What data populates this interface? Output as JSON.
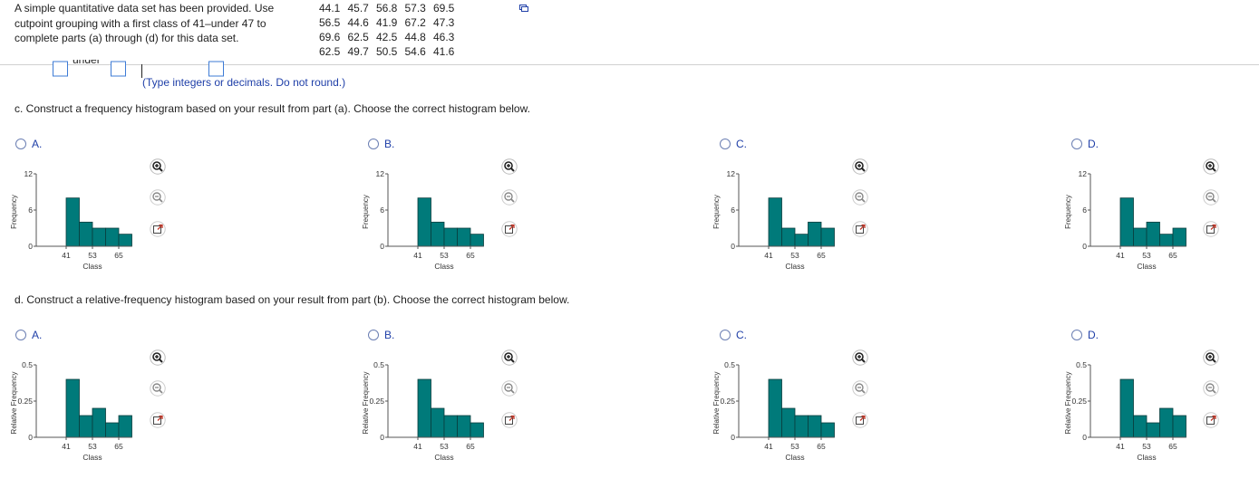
{
  "problem": {
    "lines": [
      "A simple quantitative data set has been provided. Use",
      "cutpoint grouping with a first class of 41–under 47 to",
      "complete parts (a) through (d) for this data set."
    ],
    "data_rows": [
      [
        "44.1",
        "45.7",
        "56.8",
        "57.3",
        "69.5"
      ],
      [
        "56.5",
        "44.6",
        "41.9",
        "67.2",
        "47.3"
      ],
      [
        "69.6",
        "62.5",
        "42.5",
        "44.8",
        "46.3"
      ],
      [
        "62.5",
        "49.7",
        "50.5",
        "54.6",
        "41.6"
      ]
    ]
  },
  "part_b_fragment": {
    "under_text": "under"
  },
  "hint": "(Type integers or decimals. Do not round.)",
  "part_c": {
    "question": "c. Construct a frequency histogram based on your result from part (a). Choose the correct histogram below.",
    "options": [
      "A.",
      "B.",
      "C.",
      "D."
    ]
  },
  "part_d": {
    "question": "d. Construct a relative-frequency histogram based on your result from part (b). Choose the correct histogram below.",
    "options": [
      "A.",
      "B.",
      "C.",
      "D."
    ]
  },
  "colors": {
    "bar": "#007a7a",
    "link": "#1f3fa8",
    "radio": "#6b7fb3"
  },
  "icons": [
    "zoom-in-icon",
    "zoom-out-icon",
    "open-new-window-icon",
    "copy-icon"
  ],
  "chart_data": [
    {
      "type": "bar",
      "panel": "c-A",
      "xlabel": "Class",
      "ylabel": "Frequency",
      "ylim": [
        0,
        12
      ],
      "yticks": [
        "0",
        "6",
        "12"
      ],
      "xticks": [
        "41",
        "53",
        "65"
      ],
      "values": [
        8,
        4,
        3,
        3,
        2
      ]
    },
    {
      "type": "bar",
      "panel": "c-B",
      "xlabel": "Class",
      "ylabel": "Frequency",
      "ylim": [
        0,
        12
      ],
      "yticks": [
        "0",
        "6",
        "12"
      ],
      "xticks": [
        "41",
        "53",
        "65"
      ],
      "values": [
        8,
        4,
        3,
        3,
        2
      ]
    },
    {
      "type": "bar",
      "panel": "c-C",
      "xlabel": "Class",
      "ylabel": "Frequency",
      "ylim": [
        0,
        12
      ],
      "yticks": [
        "0",
        "6",
        "12"
      ],
      "xticks": [
        "41",
        "53",
        "65"
      ],
      "values": [
        8,
        3,
        2,
        4,
        3
      ]
    },
    {
      "type": "bar",
      "panel": "c-D",
      "xlabel": "Class",
      "ylabel": "Frequency",
      "ylim": [
        0,
        12
      ],
      "yticks": [
        "0",
        "6",
        "12"
      ],
      "xticks": [
        "41",
        "53",
        "65"
      ],
      "values": [
        8,
        3,
        4,
        2,
        3
      ]
    },
    {
      "type": "bar",
      "panel": "d-A",
      "xlabel": "Class",
      "ylabel": "Relative Frequency",
      "ylim": [
        0,
        0.5
      ],
      "yticks": [
        "0",
        "0.25",
        "0.5"
      ],
      "xticks": [
        "41",
        "53",
        "65"
      ],
      "values": [
        0.4,
        0.15,
        0.2,
        0.1,
        0.15
      ]
    },
    {
      "type": "bar",
      "panel": "d-B",
      "xlabel": "Class",
      "ylabel": "Relative Frequency",
      "ylim": [
        0,
        0.5
      ],
      "yticks": [
        "0",
        "0.25",
        "0.5"
      ],
      "xticks": [
        "41",
        "53",
        "65"
      ],
      "values": [
        0.4,
        0.2,
        0.15,
        0.15,
        0.1
      ]
    },
    {
      "type": "bar",
      "panel": "d-C",
      "xlabel": "Class",
      "ylabel": "Relative Frequency",
      "ylim": [
        0,
        0.5
      ],
      "yticks": [
        "0",
        "0.25",
        "0.5"
      ],
      "xticks": [
        "41",
        "53",
        "65"
      ],
      "values": [
        0.4,
        0.2,
        0.15,
        0.15,
        0.1
      ]
    },
    {
      "type": "bar",
      "panel": "d-D",
      "xlabel": "Class",
      "ylabel": "Relative Frequency",
      "ylim": [
        0,
        0.5
      ],
      "yticks": [
        "0",
        "0.25",
        "0.5"
      ],
      "xticks": [
        "41",
        "53",
        "65"
      ],
      "values": [
        0.4,
        0.15,
        0.1,
        0.2,
        0.15
      ]
    }
  ]
}
